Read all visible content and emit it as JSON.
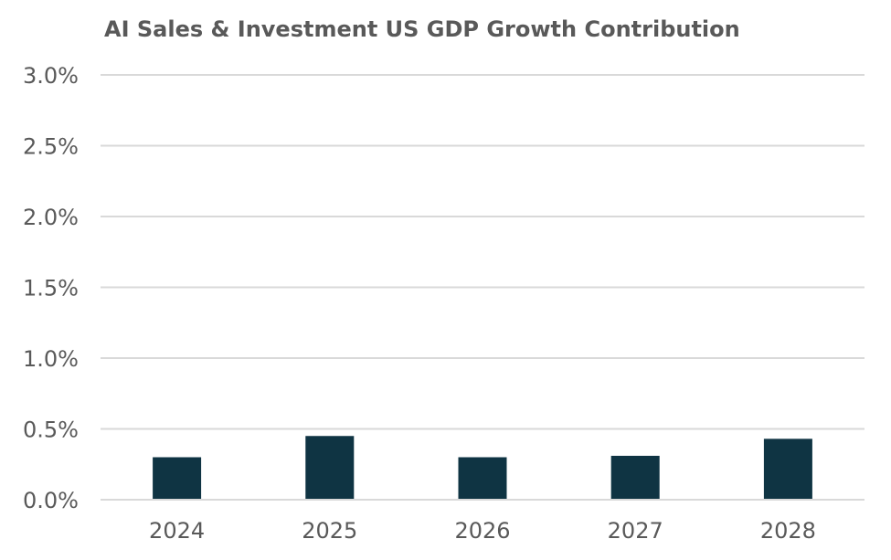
{
  "chart_data": {
    "type": "bar",
    "title": "AI Sales & Investment US GDP Growth Contribution",
    "xlabel": "",
    "ylabel": "",
    "categories": [
      "2024",
      "2025",
      "2026",
      "2027",
      "2028"
    ],
    "series": [
      {
        "name": "AI Sales & Investment US GDP Growth Contribution",
        "values": [
          0.3,
          0.45,
          0.3,
          0.31,
          0.43
        ]
      }
    ],
    "ylim": [
      0,
      3.0
    ],
    "yticks": [
      0.0,
      0.5,
      1.0,
      1.5,
      2.0,
      2.5,
      3.0
    ],
    "ytick_labels": [
      "0.0%",
      "0.5%",
      "1.0%",
      "1.5%",
      "2.0%",
      "2.5%",
      "3.0%"
    ],
    "grid": true,
    "legend": "none",
    "bar_color": "#0f3443"
  }
}
